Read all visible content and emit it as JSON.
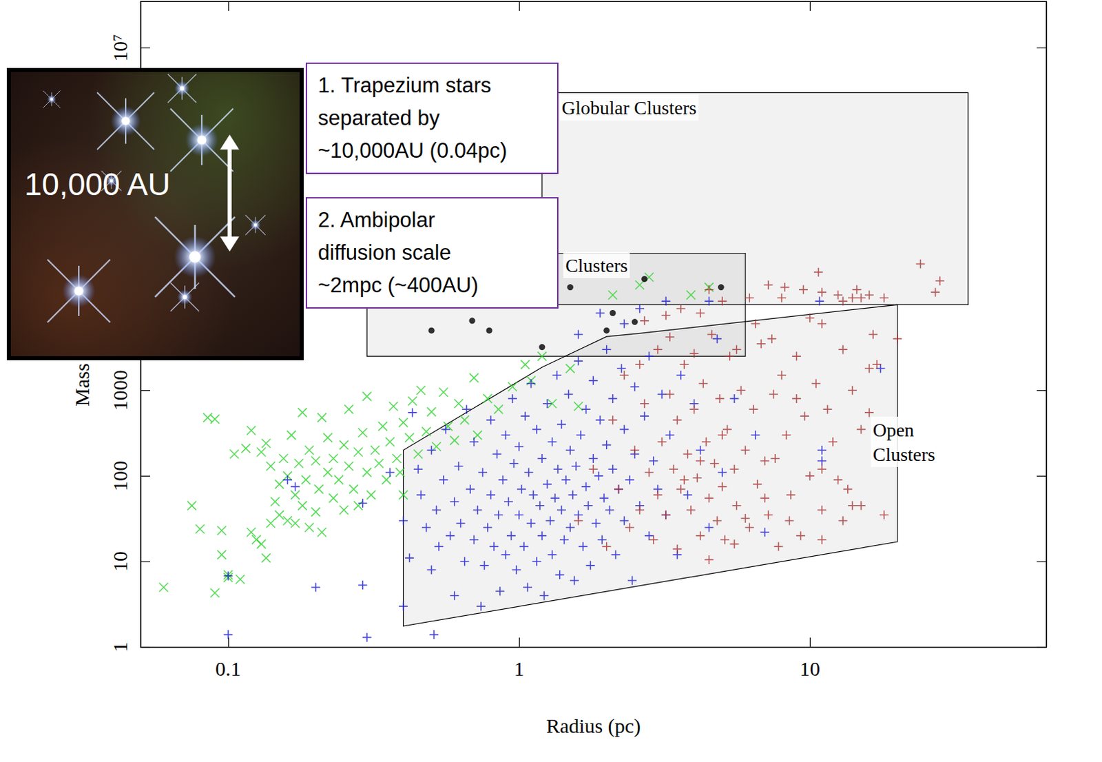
{
  "chart_data": {
    "type": "scatter",
    "x_label": "Radius (pc)",
    "y_label": "Mass",
    "log": true,
    "grid": false,
    "xlim": [
      0.05,
      65
    ],
    "xticks": [
      0.1,
      1,
      10
    ],
    "ylim": [
      1,
      35000000
    ],
    "yticks": [
      1,
      10,
      100,
      1000,
      {
        "value": 10000000,
        "label": "10⁷"
      }
    ],
    "regions": [
      {
        "label": "Globular Clusters",
        "points": [
          [
            1.2,
            10000
          ],
          [
            1.2,
            3000000
          ],
          [
            35,
            3000000
          ],
          [
            35,
            10000
          ]
        ],
        "label_at": [
          1.38,
          2000000
        ]
      },
      {
        "label": "Clusters",
        "points": [
          [
            0.3,
            2500
          ],
          [
            0.3,
            40000
          ],
          [
            6,
            40000
          ],
          [
            6,
            2500
          ]
        ],
        "label_at": [
          1.42,
          29000
        ]
      },
      {
        "label": "Open\nClusters",
        "points": [
          [
            0.4,
            1.76
          ],
          [
            0.4,
            200
          ],
          [
            1.2,
            1860
          ],
          [
            2,
            4250
          ],
          [
            2.6,
            4640
          ],
          [
            20,
            10000
          ],
          [
            20,
            17
          ]
        ],
        "label_at": [
          16.2,
          250
        ]
      }
    ],
    "series": [
      {
        "color": "#2fd22f",
        "marker": "x",
        "x": [
          0.06,
          0.075,
          0.08,
          0.085,
          0.09,
          0.09,
          0.095,
          0.095,
          0.1,
          0.1,
          0.105,
          0.11,
          0.115,
          0.12,
          0.12,
          0.125,
          0.13,
          0.13,
          0.135,
          0.135,
          0.14,
          0.14,
          0.145,
          0.15,
          0.15,
          0.155,
          0.16,
          0.16,
          0.165,
          0.17,
          0.17,
          0.175,
          0.18,
          0.18,
          0.185,
          0.19,
          0.19,
          0.2,
          0.2,
          0.205,
          0.21,
          0.21,
          0.22,
          0.22,
          0.23,
          0.23,
          0.24,
          0.25,
          0.25,
          0.26,
          0.26,
          0.27,
          0.28,
          0.28,
          0.29,
          0.3,
          0.3,
          0.31,
          0.32,
          0.33,
          0.34,
          0.35,
          0.36,
          0.37,
          0.38,
          0.39,
          0.4,
          0.4,
          0.42,
          0.43,
          0.45,
          0.46,
          0.48,
          0.5,
          0.52,
          0.55,
          0.57,
          0.6,
          0.62,
          0.65,
          0.7,
          0.72,
          0.78,
          0.85,
          0.95,
          1.05,
          1.1,
          1.2,
          1.3,
          1.5,
          1.6,
          2.1,
          2.6,
          2.8,
          3.9,
          4.5
        ],
        "values": [
          5,
          45,
          24,
          480,
          460,
          4.3,
          23,
          12,
          7,
          6.5,
          180,
          6.2,
          210,
          22,
          340,
          18,
          190,
          16,
          11,
          240,
          130,
          28,
          50,
          80,
          35,
          160,
          100,
          30,
          300,
          60,
          28,
          140,
          45,
          550,
          90,
          25,
          200,
          150,
          38,
          70,
          22,
          480,
          110,
          280,
          55,
          160,
          90,
          230,
          40,
          130,
          600,
          70,
          190,
          45,
          320,
          110,
          850,
          60,
          200,
          140,
          380,
          90,
          250,
          650,
          160,
          110,
          420,
          60,
          280,
          750,
          180,
          1000,
          330,
          560,
          220,
          950,
          380,
          260,
          700,
          450,
          1400,
          300,
          800,
          600,
          1100,
          2000,
          1300,
          2500,
          700,
          1800,
          650,
          13000,
          17000,
          21000,
          13000,
          16000
        ]
      },
      {
        "color": "#1c1cd0",
        "marker": "+",
        "x": [
          0.1,
          0.1,
          0.2,
          0.29,
          0.3,
          0.29,
          0.16,
          0.17,
          0.36,
          0.51,
          0.4,
          0.4,
          0.42,
          0.43,
          0.45,
          0.46,
          0.48,
          0.5,
          0.5,
          0.52,
          0.53,
          0.55,
          0.56,
          0.58,
          0.6,
          0.6,
          0.62,
          0.63,
          0.65,
          0.66,
          0.68,
          0.7,
          0.7,
          0.72,
          0.74,
          0.75,
          0.76,
          0.78,
          0.8,
          0.8,
          0.82,
          0.84,
          0.85,
          0.86,
          0.88,
          0.9,
          0.9,
          0.92,
          0.94,
          0.95,
          0.96,
          0.98,
          1.0,
          1.0,
          1.02,
          1.04,
          1.05,
          1.07,
          1.08,
          1.1,
          1.1,
          1.12,
          1.15,
          1.15,
          1.18,
          1.2,
          1.2,
          1.22,
          1.25,
          1.25,
          1.28,
          1.3,
          1.3,
          1.33,
          1.35,
          1.36,
          1.38,
          1.4,
          1.4,
          1.43,
          1.45,
          1.48,
          1.5,
          1.5,
          1.53,
          1.55,
          1.57,
          1.6,
          1.6,
          1.63,
          1.66,
          1.7,
          1.7,
          1.73,
          1.76,
          1.8,
          1.8,
          1.84,
          1.88,
          1.9,
          1.93,
          1.96,
          2.0,
          2.0,
          2.05,
          2.1,
          2.1,
          2.15,
          2.2,
          2.25,
          2.3,
          2.3,
          2.4,
          2.45,
          2.5,
          2.5,
          2.6,
          2.7,
          2.8,
          2.8,
          2.9,
          3.0,
          3.1,
          3.2,
          3.3,
          3.5,
          3.6,
          3.8,
          4.0,
          4.2,
          4.5,
          4.8,
          5.0,
          5.5,
          6.5,
          7.0,
          1.6,
          2.3,
          1.9,
          2.6,
          3.2,
          4.5,
          10.8,
          11,
          11,
          17.5
        ],
        "values": [
          1.4,
          6.8,
          5,
          5.3,
          1.3,
          48,
          90,
          75,
          110,
          1.4,
          3,
          30,
          11,
          550,
          120,
          60,
          25,
          8,
          200,
          40,
          15,
          90,
          350,
          20,
          4,
          50,
          130,
          28,
          10,
          600,
          70,
          18,
          250,
          40,
          3,
          110,
          9,
          25,
          60,
          450,
          15,
          180,
          35,
          4.5,
          90,
          12,
          300,
          50,
          20,
          800,
          140,
          8,
          35,
          220,
          70,
          15,
          500,
          5,
          110,
          28,
          1200,
          60,
          10,
          350,
          45,
          160,
          20,
          4,
          80,
          700,
          30,
          250,
          12,
          55,
          1500,
          120,
          7,
          40,
          400,
          18,
          90,
          900,
          25,
          200,
          60,
          6,
          130,
          35,
          2200,
          300,
          15,
          75,
          600,
          45,
          9,
          160,
          1300,
          28,
          100,
          450,
          18,
          55,
          3000,
          230,
          40,
          120,
          800,
          12,
          70,
          1800,
          30,
          350,
          90,
          6,
          180,
          1100,
          45,
          500,
          20,
          2500,
          150,
          70,
          900,
          35,
          300,
          12,
          1500,
          60,
          700,
          200,
          25,
          4000,
          110,
          800,
          300,
          22,
          4500,
          6000,
          8000,
          9000,
          11000,
          11000,
          11000,
          200,
          150,
          1800
        ]
      },
      {
        "color": "#a83232",
        "marker": "+",
        "x": [
          1.6,
          1.8,
          2.0,
          2.1,
          2.2,
          2.3,
          2.4,
          2.5,
          2.6,
          2.7,
          2.8,
          2.9,
          3.0,
          3.0,
          3.1,
          3.2,
          3.3,
          3.4,
          3.5,
          3.5,
          3.6,
          3.7,
          3.8,
          3.9,
          4.0,
          4.1,
          4.2,
          4.3,
          4.4,
          4.5,
          4.6,
          4.7,
          4.8,
          4.9,
          5.0,
          5.1,
          5.2,
          5.3,
          5.5,
          5.6,
          5.8,
          6.0,
          6.2,
          6.4,
          6.6,
          6.8,
          7.0,
          7.2,
          7.5,
          7.8,
          8.0,
          8.0,
          8.3,
          8.6,
          9.0,
          9.3,
          9.6,
          10,
          10,
          10.5,
          11,
          11,
          11.5,
          12,
          12.5,
          13,
          13.5,
          14,
          14.5,
          15,
          16,
          17,
          18,
          20,
          24,
          27,
          28,
          10.7,
          8.2,
          6.2,
          9.5,
          7.2,
          11,
          12.5,
          3.6,
          4.2,
          5.0,
          2.7,
          4.5,
          3.2,
          6.5,
          7.4,
          5.6,
          4.0,
          3.3,
          2.6,
          5.0,
          4.2,
          3.7,
          4.5,
          5.5,
          6.0,
          7.0,
          7.6,
          8.5,
          9.0,
          13,
          14,
          11,
          15,
          16,
          11,
          14,
          18,
          16,
          13,
          15,
          16.5
        ],
        "values": [
          30,
          120,
          15,
          450,
          70,
          1500,
          25,
          200,
          40,
          700,
          110,
          18,
          3000,
          60,
          250,
          35,
          900,
          120,
          14,
          450,
          70,
          2000,
          180,
          40,
          600,
          95,
          20,
          1200,
          250,
          55,
          4500,
          140,
          30,
          800,
          75,
          18,
          350,
          2500,
          120,
          45,
          1000,
          200,
          25,
          600,
          80,
          3500,
          150,
          35,
          900,
          15,
          12000,
          1500,
          300,
          60,
          2500,
          20,
          500,
          100,
          7000,
          1200,
          40,
          14000,
          600,
          250,
          13000,
          3000,
          70,
          1000,
          15000,
          45,
          550,
          2000,
          35,
          4000,
          30000,
          14000,
          19000,
          24000,
          16000,
          12000,
          15000,
          17000,
          18,
          90,
          9000,
          8000,
          11000,
          6500,
          15000,
          7500,
          6000,
          4000,
          3000,
          2700,
          4200,
          2000,
          300,
          150,
          90,
          10.5,
          16,
          32,
          55,
          160,
          30,
          800,
          30,
          45,
          120,
          350,
          1800,
          6000,
          12000,
          12000,
          13000,
          11000,
          12000,
          4500
        ]
      },
      {
        "color": "#000000",
        "marker": "o",
        "x": [
          0.5,
          0.69,
          0.79,
          1.2,
          1.5,
          2.0,
          2.1,
          2.5,
          2.7,
          4.95
        ],
        "values": [
          5000,
          6500,
          5000,
          3200,
          16000,
          5000,
          8000,
          6300,
          20000,
          16000
        ]
      }
    ],
    "annotations": [
      "1. Trapezium stars\nseparated by\n~10,000AU (0.04pc)",
      "2. Ambipolar\ndiffusion scale\n~2mpc (~400AU)"
    ],
    "inset_label": "10,000 AU"
  }
}
